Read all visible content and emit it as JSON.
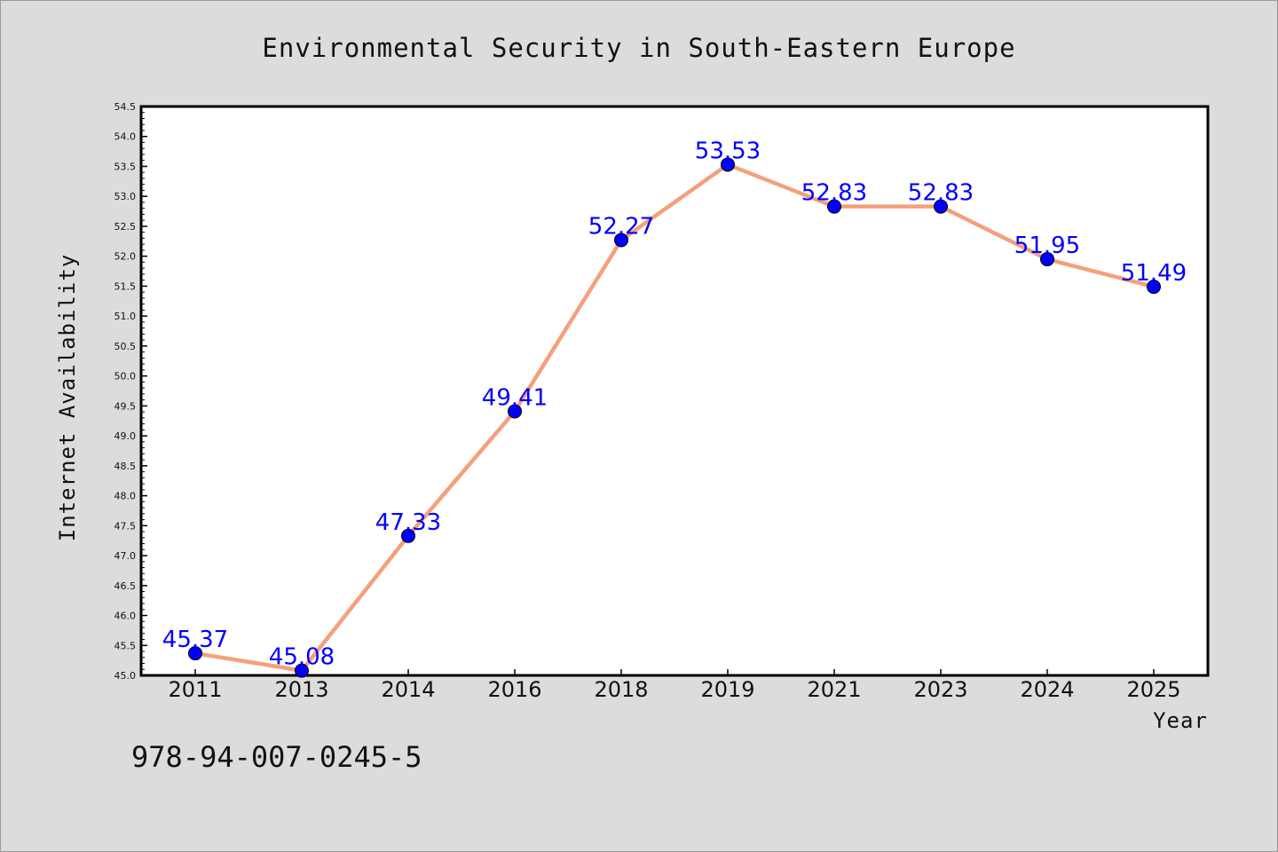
{
  "chart_data": {
    "type": "line",
    "title": "Environmental Security in South-Eastern Europe",
    "xlabel": "Year",
    "ylabel": "Internet Availability",
    "categories": [
      "2011",
      "2013",
      "2014",
      "2016",
      "2018",
      "2019",
      "2021",
      "2023",
      "2024",
      "2025"
    ],
    "values": [
      45.37,
      45.08,
      47.33,
      49.41,
      52.27,
      53.53,
      52.83,
      52.83,
      51.95,
      51.49
    ],
    "data_labels": [
      "45.37",
      "45.08",
      "47.33",
      "49.41",
      "52.27",
      "53.53",
      "52.83",
      "52.83",
      "51.95",
      "51.49"
    ],
    "ylim": [
      45.0,
      54.5
    ],
    "yticks": [
      "45.0",
      "45.5",
      "46.0",
      "46.5",
      "47.0",
      "47.5",
      "48.0",
      "48.5",
      "49.0",
      "49.5",
      "50.0",
      "50.5",
      "51.0",
      "51.5",
      "52.0",
      "52.5",
      "53.0",
      "53.5",
      "54.0",
      "54.5"
    ],
    "grid": false,
    "colors": {
      "line": "#f4a07c",
      "marker": "#0000ff",
      "label": "#0000ff",
      "figure_background": "#dcdcdc",
      "plot_background": "#ffffff"
    }
  },
  "footer_text": "978-94-007-0245-5"
}
